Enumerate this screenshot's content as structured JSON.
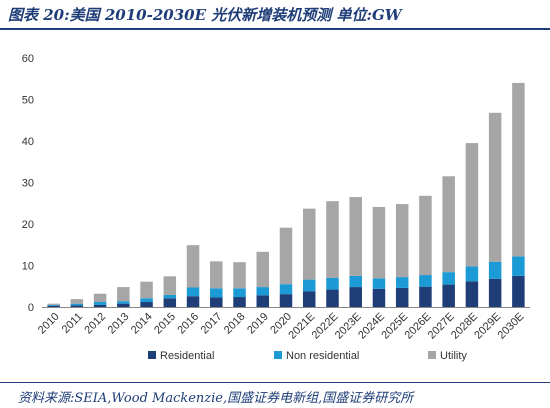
{
  "title": "图表 20:美国 2010-2030E 光伏新增装机预测 单位:GW",
  "source": "资料来源:SEIA,Wood Mackenzie,国盛证券电新组,国盛证券研究所",
  "chart_data": {
    "type": "bar",
    "stacked": true,
    "categories": [
      "2010",
      "2011",
      "2012",
      "2013",
      "2014",
      "2015",
      "2016",
      "2017",
      "2018",
      "2019",
      "2020",
      "2021E",
      "2022E",
      "2023E",
      "2024E",
      "2025E",
      "2026E",
      "2027E",
      "2028E",
      "2029E",
      "2030E"
    ],
    "series": [
      {
        "name": "Residential",
        "color": "#1f3e78",
        "values": [
          0.3,
          0.4,
          0.5,
          0.8,
          1.2,
          2.1,
          2.6,
          2.3,
          2.4,
          2.8,
          3.1,
          3.8,
          4.2,
          4.8,
          4.4,
          4.6,
          4.9,
          5.4,
          6.2,
          6.8,
          7.5
        ]
      },
      {
        "name": "Non residential",
        "color": "#1b9ad6",
        "values": [
          0.2,
          0.4,
          0.7,
          0.6,
          0.9,
          0.8,
          2.1,
          2.2,
          2.1,
          2.0,
          2.4,
          2.8,
          2.8,
          2.7,
          2.5,
          2.6,
          2.8,
          3.0,
          3.6,
          4.1,
          4.7
        ]
      },
      {
        "name": "Utility",
        "color": "#a6a6a6",
        "values": [
          0.3,
          1.1,
          2.0,
          3.4,
          4.0,
          4.5,
          10.2,
          6.5,
          6.3,
          8.5,
          13.6,
          17.1,
          18.5,
          19.0,
          17.2,
          17.6,
          19.1,
          23.1,
          29.7,
          35.9,
          41.8
        ]
      }
    ],
    "yticks": [
      0,
      10,
      20,
      30,
      40,
      50,
      60
    ],
    "ylim": [
      0,
      60
    ],
    "grid": false,
    "legend": "bottom"
  }
}
